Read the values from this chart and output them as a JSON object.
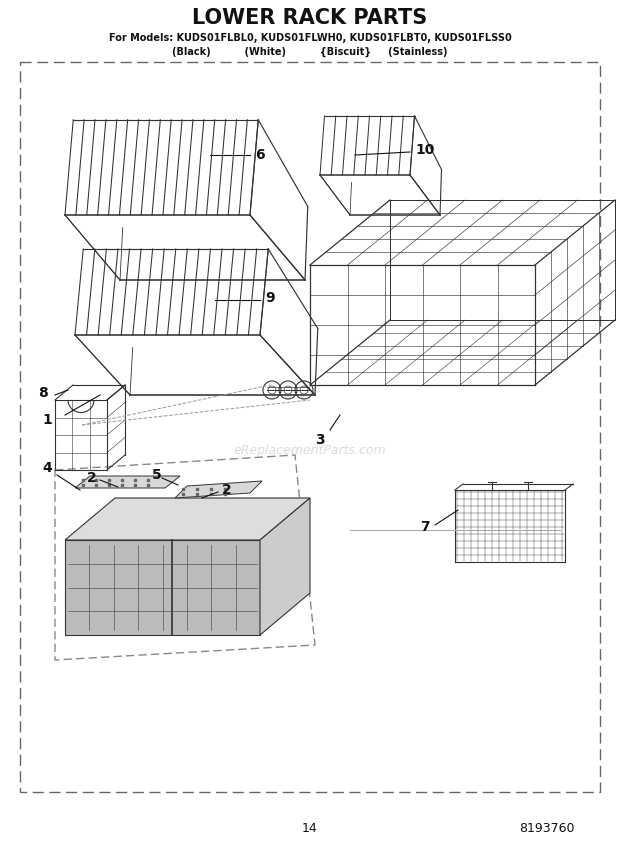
{
  "title": "LOWER RACK PARTS",
  "subtitle": "For Models: KUDS01FLBL0, KUDS01FLWH0, KUDS01FLBT0, KUDS01FLSS0",
  "subtitle2": "(Black)          (White)          {Biscuit}     (Stainless)",
  "page_number": "14",
  "part_number": "8193760",
  "watermark": "eReplacementParts.com",
  "bg_color": "#ffffff",
  "drawing_color": "#333333",
  "label_color": "#111111"
}
